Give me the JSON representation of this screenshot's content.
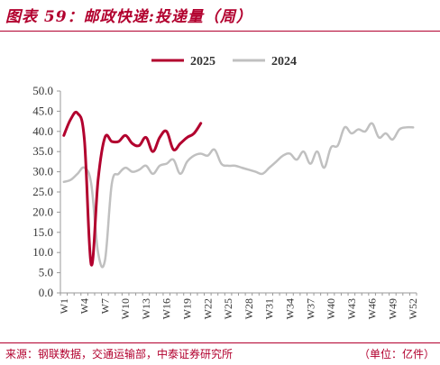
{
  "title": "图表 59：邮政快递:投递量（周）",
  "source": "来源：钢联数据，交通运输部，中泰证券研究所",
  "unit": "（单位：亿件）",
  "colors": {
    "2025": "#b2002e",
    "2024": "#c0c0c0",
    "brand": "#b2002e"
  },
  "chart_data": {
    "type": "line",
    "ylim": [
      0,
      50
    ],
    "ytick_labels": [
      "0.0",
      "5.0",
      "10.0",
      "15.0",
      "20.0",
      "25.0",
      "30.0",
      "35.0",
      "40.0",
      "45.0",
      "50.0"
    ],
    "xtick_labels": [
      "W1",
      "W4",
      "W7",
      "W10",
      "W13",
      "W16",
      "W19",
      "W22",
      "W25",
      "W28",
      "W31",
      "W34",
      "W37",
      "W40",
      "W43",
      "W46",
      "W49",
      "W52"
    ],
    "legend_placement": "top-center",
    "grid": false,
    "series": [
      {
        "name": "2025",
        "x": [
          1,
          2,
          3,
          4,
          5,
          6,
          7,
          8,
          9,
          10,
          11,
          12,
          13,
          14,
          15,
          16,
          17,
          18,
          19,
          20,
          21
        ],
        "y": [
          39.0,
          43.0,
          44.5,
          38.0,
          7.0,
          28.0,
          38.5,
          37.5,
          37.5,
          39.0,
          37.0,
          36.5,
          38.5,
          35.0,
          38.5,
          40.0,
          35.5,
          37.0,
          38.5,
          39.5,
          42.0
        ]
      },
      {
        "name": "2024",
        "x": [
          1,
          2,
          3,
          4,
          5,
          6,
          7,
          8,
          9,
          10,
          11,
          12,
          13,
          14,
          15,
          16,
          17,
          18,
          19,
          20,
          21,
          22,
          23,
          24,
          25,
          26,
          27,
          28,
          29,
          30,
          31,
          32,
          33,
          34,
          35,
          36,
          37,
          38,
          39,
          40,
          41,
          42,
          43,
          44,
          45,
          46,
          47,
          48,
          49,
          50,
          51,
          52
        ],
        "y": [
          27.5,
          28.0,
          29.5,
          31.0,
          27.0,
          10.0,
          8.0,
          27.0,
          29.5,
          31.0,
          30.0,
          30.5,
          31.5,
          29.5,
          31.5,
          32.0,
          33.0,
          29.5,
          32.5,
          34.0,
          34.5,
          34.0,
          35.5,
          32.0,
          31.5,
          31.5,
          31.0,
          30.5,
          30.0,
          29.5,
          31.0,
          32.5,
          34.0,
          34.5,
          33.0,
          35.0,
          32.0,
          35.0,
          31.0,
          36.0,
          36.5,
          41.0,
          39.5,
          40.5,
          40.0,
          42.0,
          38.5,
          39.5,
          38.0,
          40.5,
          41.0,
          41.0
        ]
      }
    ]
  }
}
